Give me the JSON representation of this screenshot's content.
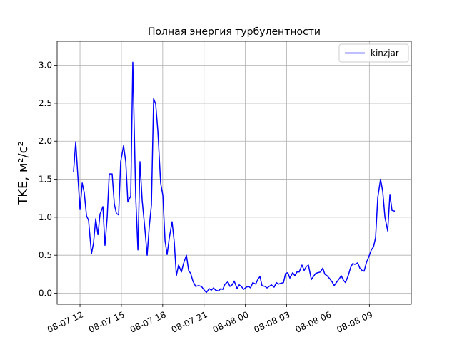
{
  "chart_data": {
    "type": "line",
    "title": "Полная энергия турбулентности",
    "ylabel": "TKE, м²/с²",
    "x": [
      11.53,
      11.69,
      11.84,
      12.0,
      12.16,
      12.31,
      12.47,
      12.62,
      12.83,
      12.98,
      13.14,
      13.3,
      13.45,
      13.66,
      13.81,
      13.97,
      14.12,
      14.33,
      14.49,
      14.64,
      14.8,
      14.95,
      15.16,
      15.32,
      15.47,
      15.68,
      15.83,
      16.04,
      16.2,
      16.35,
      16.51,
      16.72,
      16.87,
      17.03,
      17.18,
      17.34,
      17.49,
      17.65,
      17.85,
      18.01,
      18.17,
      18.32,
      18.48,
      18.68,
      18.84,
      18.99,
      19.15,
      19.36,
      19.51,
      19.72,
      19.88,
      20.03,
      20.19,
      20.39,
      20.6,
      20.81,
      21.02,
      21.17,
      21.38,
      21.53,
      21.69,
      21.84,
      22.05,
      22.21,
      22.36,
      22.52,
      22.73,
      22.88,
      23.04,
      23.19,
      23.4,
      23.55,
      23.71,
      23.87,
      24.07,
      24.23,
      24.38,
      24.54,
      24.75,
      24.9,
      25.06,
      25.21,
      25.42,
      25.58,
      25.73,
      25.89,
      26.09,
      26.25,
      26.41,
      26.56,
      26.77,
      26.92,
      27.08,
      27.23,
      27.44,
      27.6,
      27.75,
      27.91,
      28.11,
      28.27,
      28.42,
      28.58,
      28.79,
      28.94,
      29.1,
      29.25,
      29.46,
      29.62,
      29.77,
      29.93,
      30.13,
      30.29,
      30.45,
      30.6,
      30.81,
      30.96,
      31.12,
      31.27,
      31.48,
      31.64,
      31.79,
      31.95,
      32.15,
      32.31,
      32.47,
      32.62,
      32.78,
      32.98,
      33.14,
      33.3,
      33.45,
      33.61,
      33.81,
      33.97,
      34.13,
      34.33,
      34.49,
      34.64,
      34.85
    ],
    "series": [
      {
        "name": "kinzjar",
        "color": "#0000ff",
        "values": [
          1.6,
          1.99,
          1.55,
          1.1,
          1.45,
          1.32,
          1.02,
          0.96,
          0.52,
          0.66,
          0.98,
          0.77,
          1.04,
          1.14,
          0.63,
          1.0,
          1.57,
          1.57,
          1.17,
          1.05,
          1.03,
          1.73,
          1.94,
          1.73,
          1.2,
          1.28,
          3.04,
          1.27,
          0.57,
          1.73,
          1.22,
          0.82,
          0.5,
          0.89,
          1.16,
          2.56,
          2.49,
          2.13,
          1.45,
          1.29,
          0.69,
          0.51,
          0.73,
          0.94,
          0.67,
          0.23,
          0.37,
          0.28,
          0.39,
          0.5,
          0.3,
          0.26,
          0.16,
          0.09,
          0.1,
          0.09,
          0.04,
          0.01,
          0.06,
          0.04,
          0.07,
          0.04,
          0.03,
          0.06,
          0.05,
          0.12,
          0.15,
          0.09,
          0.11,
          0.16,
          0.06,
          0.11,
          0.09,
          0.05,
          0.08,
          0.09,
          0.07,
          0.14,
          0.12,
          0.18,
          0.22,
          0.1,
          0.09,
          0.07,
          0.09,
          0.11,
          0.08,
          0.14,
          0.12,
          0.13,
          0.14,
          0.26,
          0.27,
          0.2,
          0.27,
          0.23,
          0.28,
          0.28,
          0.37,
          0.3,
          0.35,
          0.37,
          0.18,
          0.22,
          0.26,
          0.27,
          0.28,
          0.33,
          0.25,
          0.23,
          0.19,
          0.15,
          0.1,
          0.14,
          0.19,
          0.23,
          0.17,
          0.14,
          0.24,
          0.34,
          0.39,
          0.38,
          0.4,
          0.33,
          0.3,
          0.29,
          0.4,
          0.49,
          0.57,
          0.61,
          0.73,
          1.26,
          1.5,
          1.34,
          1.0,
          0.82,
          1.3,
          1.09,
          1.08
        ]
      }
    ],
    "xlim": [
      10.34,
      36.04
    ],
    "xticks": [
      {
        "value": 12,
        "label": "08-07 12"
      },
      {
        "value": 15,
        "label": "08-07 15"
      },
      {
        "value": 18,
        "label": "08-07 18"
      },
      {
        "value": 21,
        "label": "08-07 21"
      },
      {
        "value": 24,
        "label": "08-08 00"
      },
      {
        "value": 27,
        "label": "08-08 03"
      },
      {
        "value": 30,
        "label": "08-08 06"
      },
      {
        "value": 33,
        "label": "08-08 09"
      }
    ],
    "ylim": [
      -0.145,
      3.315
    ],
    "yticks": [
      {
        "value": 0,
        "label": "0.0"
      },
      {
        "value": 0.5,
        "label": "0.5"
      },
      {
        "value": 1,
        "label": "1.0"
      },
      {
        "value": 1.5,
        "label": "1.5"
      },
      {
        "value": 2,
        "label": "2.0"
      },
      {
        "value": 2.5,
        "label": "2.5"
      },
      {
        "value": 3,
        "label": "3.0"
      }
    ],
    "grid": true,
    "legend": "upper right"
  }
}
